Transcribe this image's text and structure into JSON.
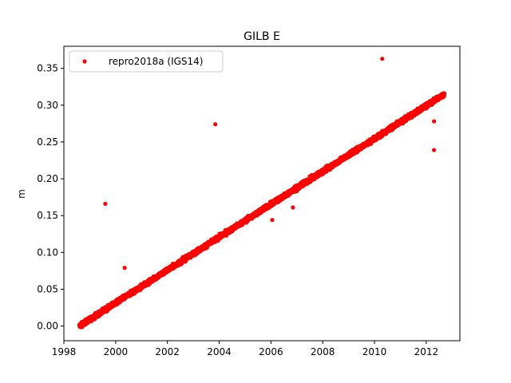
{
  "chart_data": {
    "type": "scatter",
    "title": "GILB E",
    "xlabel": "",
    "ylabel": "m",
    "xlim": [
      1998.0,
      2013.3
    ],
    "ylim": [
      -0.02,
      0.38
    ],
    "xticks": [
      1998,
      2000,
      2002,
      2004,
      2006,
      2008,
      2010,
      2012
    ],
    "yticks": [
      0.0,
      0.05,
      0.1,
      0.15,
      0.2,
      0.25,
      0.3,
      0.35
    ],
    "ytick_labels": [
      "0.00",
      "0.05",
      "0.10",
      "0.15",
      "0.20",
      "0.25",
      "0.30",
      "0.35"
    ],
    "grid": false,
    "legend_position": "upper-left",
    "series": [
      {
        "name": "repro2018a (IGS14)",
        "color": "#ff0000",
        "marker": "circle",
        "trend": {
          "x_start": 1998.6,
          "x_end": 2012.7,
          "y_start": 0.0,
          "y_end": 0.315,
          "daily_spacing_years": 0.00274,
          "noise_m": 0.003
        },
        "outliers": [
          {
            "x": 1999.6,
            "y": 0.166
          },
          {
            "x": 2000.35,
            "y": 0.079
          },
          {
            "x": 2003.85,
            "y": 0.274
          },
          {
            "x": 2006.05,
            "y": 0.144
          },
          {
            "x": 2006.85,
            "y": 0.161
          },
          {
            "x": 2010.3,
            "y": 0.363
          },
          {
            "x": 2012.3,
            "y": 0.278
          },
          {
            "x": 2012.3,
            "y": 0.239
          }
        ]
      }
    ]
  }
}
